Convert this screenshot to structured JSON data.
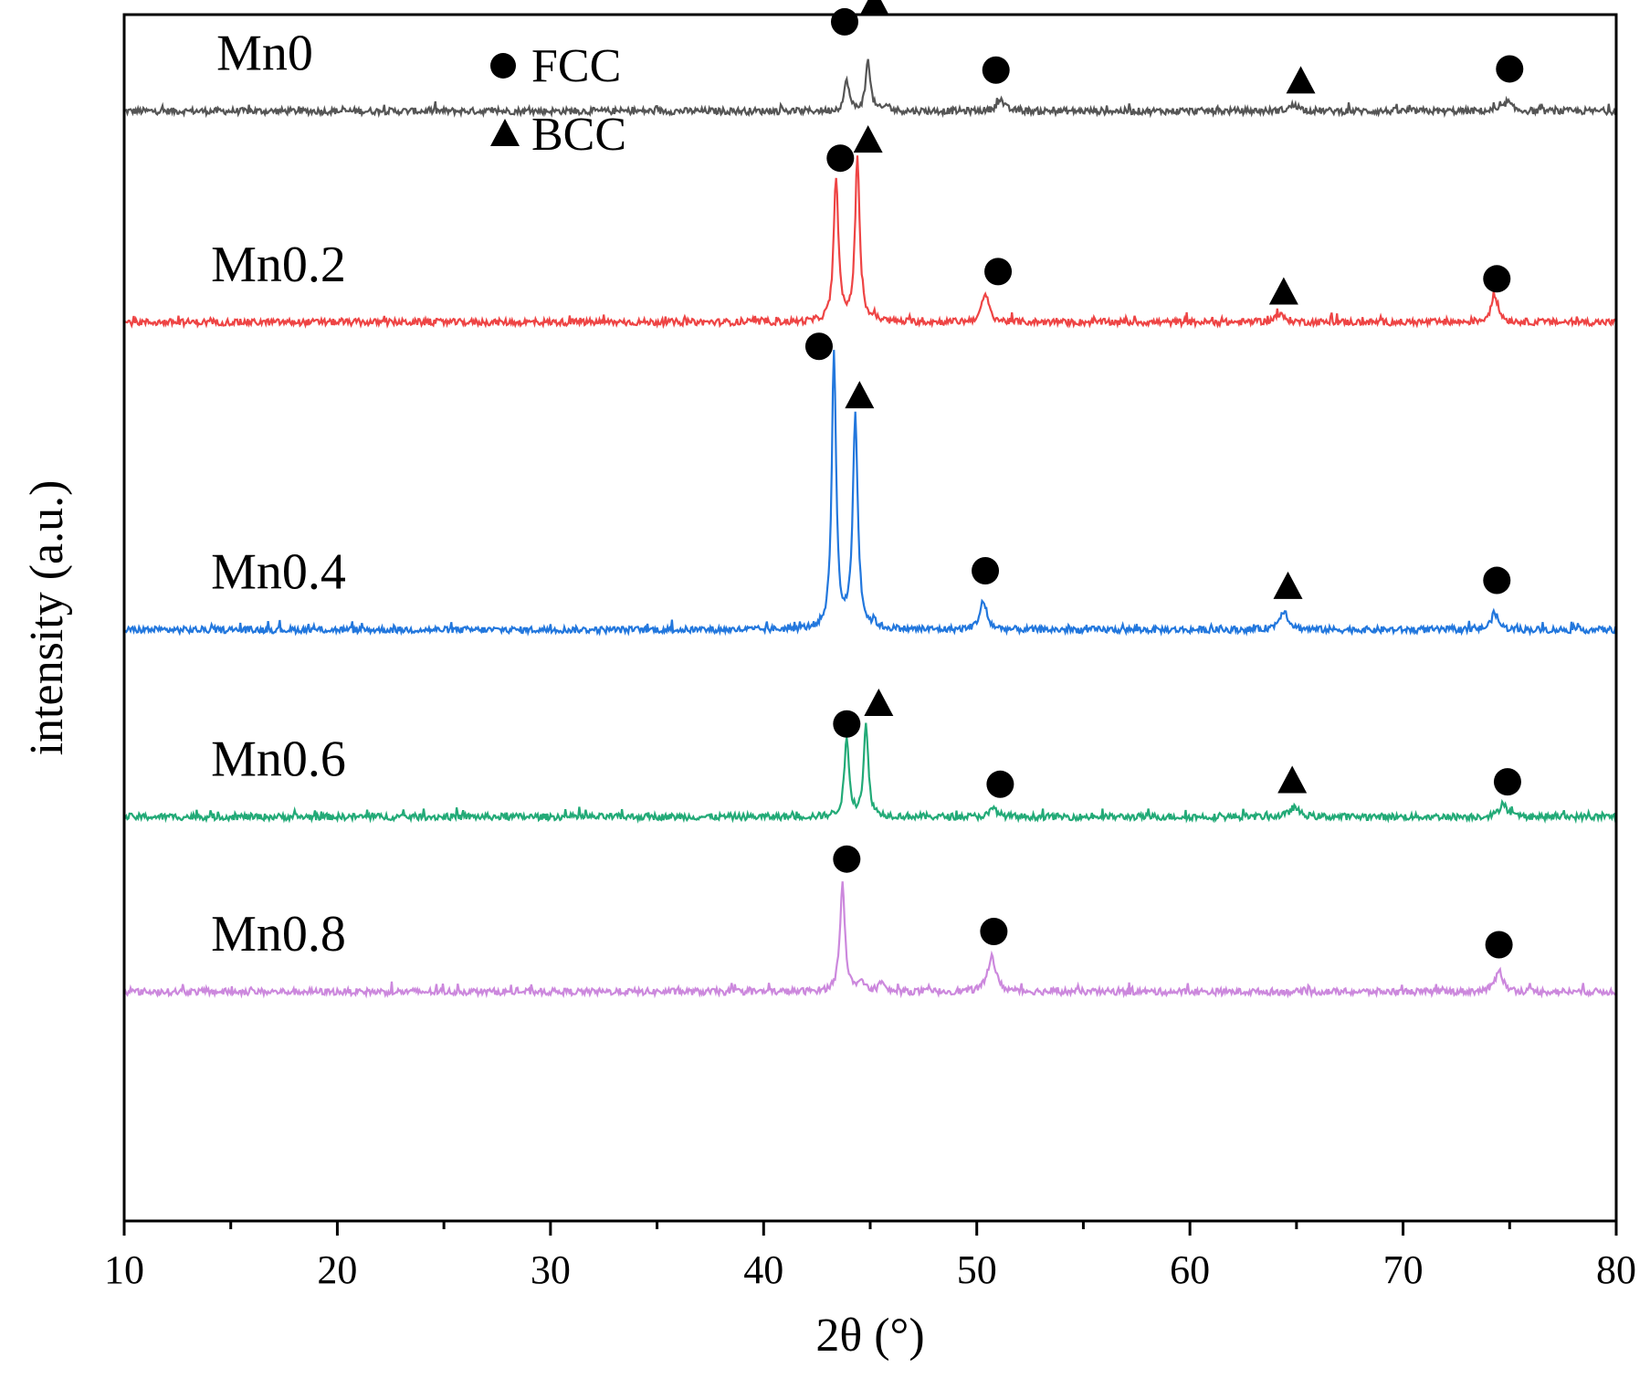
{
  "chart_data": {
    "type": "line",
    "title": "",
    "xlabel": "2θ (°)",
    "ylabel": "intensity (a.u.)",
    "xlim": [
      10,
      80
    ],
    "x_ticks": [
      10,
      20,
      30,
      40,
      50,
      60,
      70,
      80
    ],
    "x_tick_labels": [
      "10",
      "20",
      "30",
      "40",
      "50",
      "60",
      "70",
      "80"
    ],
    "y_ticks": [],
    "grid": false,
    "legend": {
      "position": "top-left",
      "entries": [
        {
          "symbol": "circle",
          "label": "FCC"
        },
        {
          "symbol": "triangle",
          "label": "BCC"
        }
      ]
    },
    "series": [
      {
        "name": "Mn0",
        "color": "#555555",
        "baseline": 92,
        "peaks": [
          {
            "x": 43.9,
            "height": 2.6,
            "width": 0.13,
            "phase": "FCC"
          },
          {
            "x": 44.9,
            "height": 4.2,
            "width": 0.13,
            "phase": "BCC"
          },
          {
            "x": 45.8,
            "height": 0.5,
            "width": 0.12
          },
          {
            "x": 51.1,
            "height": 1.0,
            "width": 0.2,
            "phase": "FCC"
          },
          {
            "x": 64.9,
            "height": 0.5,
            "width": 0.28,
            "phase": "BCC"
          },
          {
            "x": 74.9,
            "height": 0.8,
            "width": 0.2,
            "phase": "FCC"
          }
        ],
        "markers": [
          {
            "x": 43.8,
            "y": 7.4,
            "symbol": "circle"
          },
          {
            "x": 45.2,
            "y": 9.1,
            "symbol": "triangle"
          },
          {
            "x": 50.9,
            "y": 3.4,
            "symbol": "circle"
          },
          {
            "x": 65.2,
            "y": 2.6,
            "symbol": "triangle"
          },
          {
            "x": 75.0,
            "y": 3.5,
            "symbol": "circle"
          }
        ]
      },
      {
        "name": "Mn0.2",
        "color": "#ee4444",
        "baseline": 74.5,
        "peaks": [
          {
            "x": 43.4,
            "height": 12.0,
            "width": 0.13,
            "phase": "FCC"
          },
          {
            "x": 44.4,
            "height": 13.5,
            "width": 0.13,
            "phase": "BCC"
          },
          {
            "x": 45.2,
            "height": 0.4,
            "width": 0.1
          },
          {
            "x": 50.4,
            "height": 2.3,
            "width": 0.2,
            "phase": "FCC"
          },
          {
            "x": 64.2,
            "height": 0.6,
            "width": 0.3,
            "phase": "BCC"
          },
          {
            "x": 74.3,
            "height": 2.2,
            "width": 0.2,
            "phase": "FCC"
          }
        ],
        "markers": [
          {
            "x": 43.6,
            "y": 13.6,
            "symbol": "circle"
          },
          {
            "x": 44.9,
            "y": 15.2,
            "symbol": "triangle"
          },
          {
            "x": 51.0,
            "y": 4.2,
            "symbol": "circle"
          },
          {
            "x": 64.4,
            "y": 2.6,
            "symbol": "triangle"
          },
          {
            "x": 74.4,
            "y": 3.6,
            "symbol": "circle"
          }
        ]
      },
      {
        "name": "Mn0.4",
        "color": "#2277dd",
        "baseline": 49,
        "peaks": [
          {
            "x": 43.3,
            "height": 23.0,
            "width": 0.12,
            "phase": "FCC"
          },
          {
            "x": 44.3,
            "height": 17.6,
            "width": 0.14,
            "phase": "BCC"
          },
          {
            "x": 45.2,
            "height": 0.5,
            "width": 0.1
          },
          {
            "x": 50.3,
            "height": 2.3,
            "width": 0.2,
            "phase": "FCC"
          },
          {
            "x": 64.4,
            "height": 1.6,
            "width": 0.25,
            "phase": "BCC"
          },
          {
            "x": 74.3,
            "height": 1.4,
            "width": 0.2,
            "phase": "FCC"
          }
        ],
        "markers": [
          {
            "x": 42.6,
            "y": 23.5,
            "symbol": "circle"
          },
          {
            "x": 44.5,
            "y": 19.5,
            "symbol": "triangle"
          },
          {
            "x": 50.4,
            "y": 4.9,
            "symbol": "circle"
          },
          {
            "x": 64.6,
            "y": 3.7,
            "symbol": "triangle"
          },
          {
            "x": 74.4,
            "y": 4.1,
            "symbol": "circle"
          }
        ]
      },
      {
        "name": "Mn0.6",
        "color": "#22aa77",
        "baseline": 33.5,
        "peaks": [
          {
            "x": 43.9,
            "height": 6.5,
            "width": 0.13,
            "phase": "FCC"
          },
          {
            "x": 44.8,
            "height": 7.5,
            "width": 0.13,
            "phase": "BCC"
          },
          {
            "x": 50.8,
            "height": 0.7,
            "width": 0.2,
            "phase": "FCC"
          },
          {
            "x": 64.9,
            "height": 0.8,
            "width": 0.25,
            "phase": "BCC"
          },
          {
            "x": 74.7,
            "height": 1.2,
            "width": 0.2,
            "phase": "FCC"
          }
        ],
        "markers": [
          {
            "x": 43.9,
            "y": 7.7,
            "symbol": "circle"
          },
          {
            "x": 45.4,
            "y": 9.5,
            "symbol": "triangle"
          },
          {
            "x": 51.1,
            "y": 2.7,
            "symbol": "circle"
          },
          {
            "x": 64.8,
            "y": 3.1,
            "symbol": "triangle"
          },
          {
            "x": 74.9,
            "y": 2.9,
            "symbol": "circle"
          }
        ]
      },
      {
        "name": "Mn0.8",
        "color": "#cc88dd",
        "baseline": 19,
        "peaks": [
          {
            "x": 43.7,
            "height": 9.0,
            "width": 0.14,
            "phase": "FCC"
          },
          {
            "x": 44.6,
            "height": 0.9,
            "width": 0.12
          },
          {
            "x": 45.5,
            "height": 0.9,
            "width": 0.12
          },
          {
            "x": 50.7,
            "height": 3.0,
            "width": 0.22,
            "phase": "FCC"
          },
          {
            "x": 74.5,
            "height": 1.9,
            "width": 0.2,
            "phase": "FCC"
          }
        ],
        "markers": [
          {
            "x": 43.9,
            "y": 11.0,
            "symbol": "circle"
          },
          {
            "x": 50.8,
            "y": 5.0,
            "symbol": "circle"
          },
          {
            "x": 74.5,
            "y": 3.9,
            "symbol": "circle"
          }
        ]
      }
    ]
  }
}
